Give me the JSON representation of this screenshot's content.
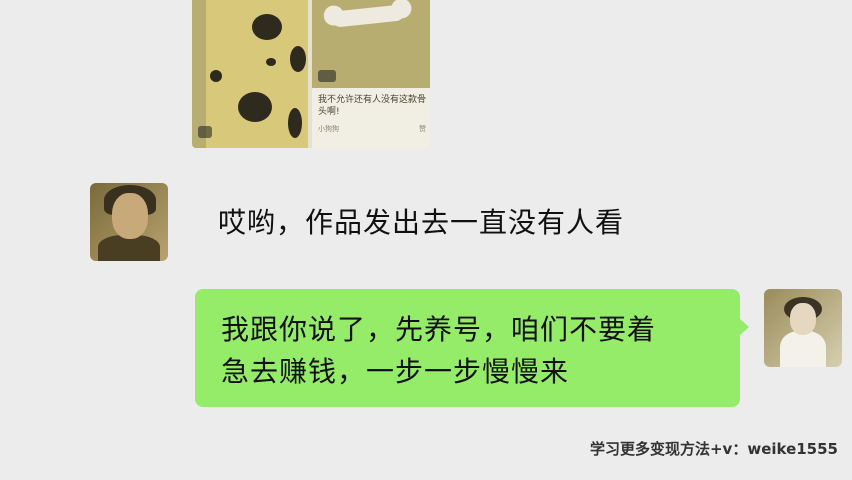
{
  "shared_card": {
    "caption": "我不允许还有人没有这款骨头啊!",
    "footer_left": "小狗狗",
    "footer_right": "赞"
  },
  "messages": {
    "left": {
      "text": "哎哟，作品发出去一直没有人看"
    },
    "right": {
      "line1": "我跟你说了，先养号，咱们不要着",
      "line2": "急去赚钱，一步一步慢慢来"
    }
  },
  "watermark": "学习更多变现方法+v：weike1555",
  "colors": {
    "background": "#ececec",
    "bubble_green": "#95ec69"
  }
}
